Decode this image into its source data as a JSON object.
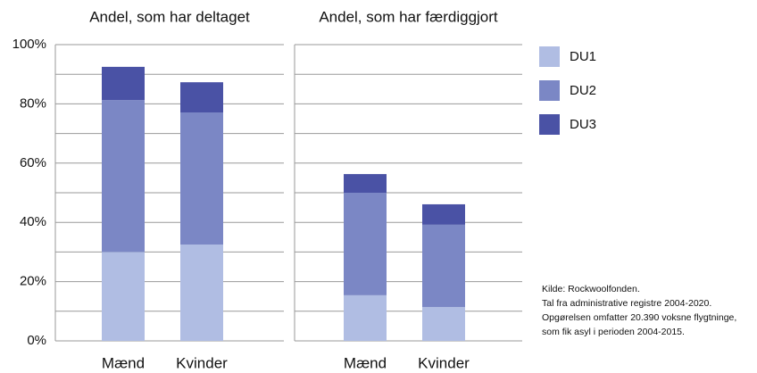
{
  "chart_data": {
    "type": "stacked_bar",
    "ylim": [
      0,
      100
    ],
    "yticks": [
      {
        "value": 0,
        "label": "0%"
      },
      {
        "value": 20,
        "label": "20%"
      },
      {
        "value": 40,
        "label": "40%"
      },
      {
        "value": 60,
        "label": "60%"
      },
      {
        "value": 80,
        "label": "80%"
      },
      {
        "value": 100,
        "label": "100%"
      }
    ],
    "yminor_ticks": [
      10,
      30,
      50,
      70,
      90
    ],
    "grid": true,
    "series": [
      {
        "name": "DU1",
        "color": "#b0bde3"
      },
      {
        "name": "DU2",
        "color": "#7b87c5"
      },
      {
        "name": "DU3",
        "color": "#4a52a5"
      }
    ],
    "panels": [
      {
        "title": "Andel, som har deltaget",
        "categories": [
          "Mænd",
          "Kvinder"
        ],
        "values": [
          [
            30,
            51.3,
            11.2
          ],
          [
            32.5,
            44.6,
            10.2
          ]
        ]
      },
      {
        "title": "Andel, som har færdiggjort",
        "categories": [
          "Mænd",
          "Kvinder"
        ],
        "values": [
          [
            15.4,
            34.6,
            6.3
          ],
          [
            11.4,
            27.8,
            6.9
          ]
        ]
      }
    ],
    "note": [
      "Kilde: Rockwoolfonden.",
      "Tal fra administrative registre 2004-2020.",
      "Opgørelsen omfatter 20.390 voksne flygtninge,",
      "som fik asyl i perioden 2004-2015."
    ]
  }
}
